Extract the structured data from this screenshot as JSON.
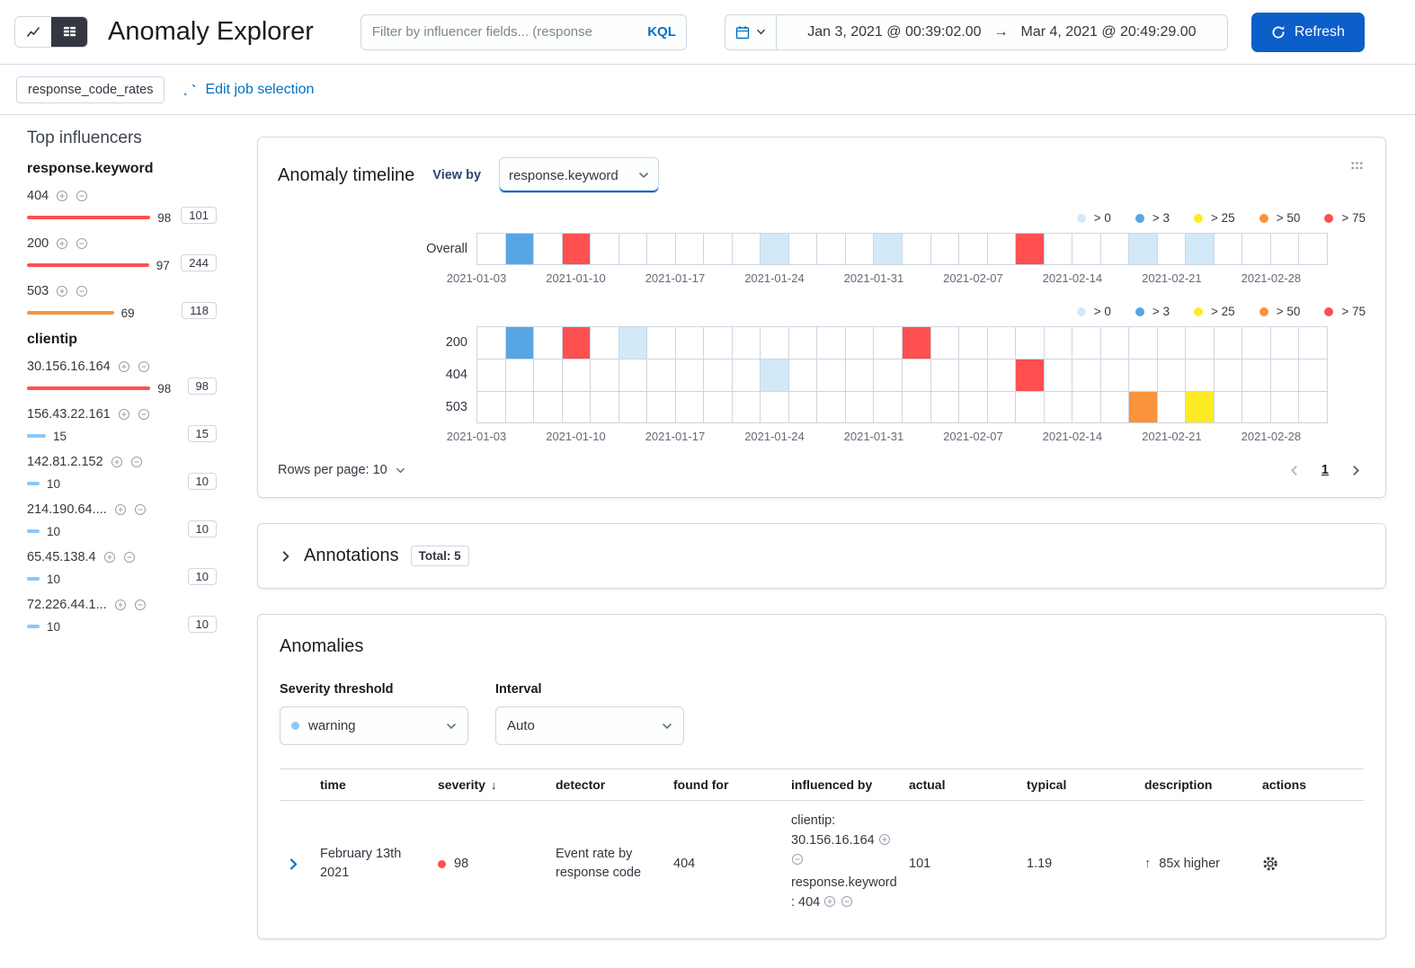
{
  "colors": {
    "primary_button": "#0c5ec9",
    "link": "#0071c2",
    "border": "#d3dae6",
    "severity_low": "#d2e9f7",
    "severity_warning": "#57a6e3",
    "severity_minor": "#fdec25",
    "severity_major": "#fb923c",
    "severity_critical": "#fe5050"
  },
  "header": {
    "title": "Anomaly Explorer",
    "filter": {
      "placeholder": "Filter by influencer fields... (response",
      "kql": "KQL"
    },
    "datepicker": {
      "start": "Jan 3, 2021 @ 00:39:02.00",
      "end": "Mar 4, 2021 @ 20:49:29.00",
      "arrow": "→"
    },
    "refresh": "Refresh"
  },
  "jobs_bar": {
    "badge": "response_code_rates",
    "edit": "Edit job selection"
  },
  "influencers": {
    "heading": "Top influencers",
    "groups": [
      {
        "field": "response.keyword",
        "items": [
          {
            "label": "404",
            "score": "98",
            "pct": 98,
            "color": "#fe5050",
            "badge": "101"
          },
          {
            "label": "200",
            "score": "97",
            "pct": 97,
            "color": "#fe5050",
            "badge": "244"
          },
          {
            "label": "503",
            "score": "69",
            "pct": 69,
            "color": "#fb923c",
            "badge": "118"
          }
        ]
      },
      {
        "field": "clientip",
        "items": [
          {
            "label": "30.156.16.164",
            "score": "98",
            "pct": 98,
            "color": "#fe5050",
            "badge": "98"
          },
          {
            "label": "156.43.22.161",
            "score": "15",
            "pct": 15,
            "color": "#8bc8fb",
            "badge": "15"
          },
          {
            "label": "142.81.2.152",
            "score": "10",
            "pct": 10,
            "color": "#8bc8fb",
            "badge": "10"
          },
          {
            "label": "214.190.64....",
            "score": "10",
            "pct": 10,
            "color": "#8bc8fb",
            "badge": "10"
          },
          {
            "label": "65.45.138.4",
            "score": "10",
            "pct": 10,
            "color": "#8bc8fb",
            "badge": "10"
          },
          {
            "label": "72.226.44.1...",
            "score": "10",
            "pct": 10,
            "color": "#8bc8fb",
            "badge": "10"
          }
        ]
      }
    ]
  },
  "timeline": {
    "title": "Anomaly timeline",
    "view_by_label": "View by",
    "view_by_value": "response.keyword",
    "legend": [
      {
        "label": "> 0",
        "color": "#d2e9f7"
      },
      {
        "label": "> 3",
        "color": "#57a6e3"
      },
      {
        "label": "> 25",
        "color": "#fdec25"
      },
      {
        "label": "> 50",
        "color": "#fb923c"
      },
      {
        "label": "> 75",
        "color": "#fe5050"
      }
    ],
    "axis_labels": [
      "2021-01-03",
      "2021-01-10",
      "2021-01-17",
      "2021-01-24",
      "2021-01-31",
      "2021-02-07",
      "2021-02-14",
      "2021-02-21",
      "2021-02-28"
    ],
    "cells_per_row": 30,
    "severity_colors": {
      "low": "#d2e9f7",
      "warning": "#57a6e3",
      "minor": "#fdec25",
      "major": "#fb923c",
      "critical": "#fe5050"
    },
    "swimlanes": {
      "overall": {
        "label": "Overall",
        "cells": [
          {
            "index": 1,
            "severity": "warning"
          },
          {
            "index": 3,
            "severity": "critical"
          },
          {
            "index": 10,
            "severity": "low"
          },
          {
            "index": 14,
            "severity": "low"
          },
          {
            "index": 19,
            "severity": "critical"
          },
          {
            "index": 23,
            "severity": "low"
          },
          {
            "index": 25,
            "severity": "low"
          }
        ]
      },
      "view_by": [
        {
          "label": "200",
          "cells": [
            {
              "index": 1,
              "severity": "warning"
            },
            {
              "index": 3,
              "severity": "critical"
            },
            {
              "index": 5,
              "severity": "low"
            },
            {
              "index": 15,
              "severity": "critical"
            }
          ]
        },
        {
          "label": "404",
          "cells": [
            {
              "index": 10,
              "severity": "low"
            },
            {
              "index": 19,
              "severity": "critical"
            }
          ]
        },
        {
          "label": "503",
          "cells": [
            {
              "index": 23,
              "severity": "major"
            },
            {
              "index": 25,
              "severity": "minor"
            }
          ]
        }
      ]
    },
    "rows_per_page": "Rows per page: 10",
    "page": "1"
  },
  "annotations": {
    "title": "Annotations",
    "total": "Total: 5"
  },
  "anomalies": {
    "title": "Anomalies",
    "severity_label": "Severity threshold",
    "severity_value": "warning",
    "severity_dot_color": "#8bc8fb",
    "interval_label": "Interval",
    "interval_value": "Auto",
    "columns": [
      "time",
      "severity",
      "detector",
      "found for",
      "influenced by",
      "actual",
      "typical",
      "description",
      "actions"
    ],
    "sort_column": "severity",
    "rows": [
      {
        "time": "February 13th 2021",
        "severity": "98",
        "severity_color": "#fe5050",
        "detector": "Event rate by response code",
        "found_for": "404",
        "influenced_by": [
          "clientip: 30.156.16.164",
          "response.keyword: 404"
        ],
        "actual": "101",
        "typical": "1.19",
        "description_arrow": "↑",
        "description": "85x higher"
      }
    ]
  }
}
